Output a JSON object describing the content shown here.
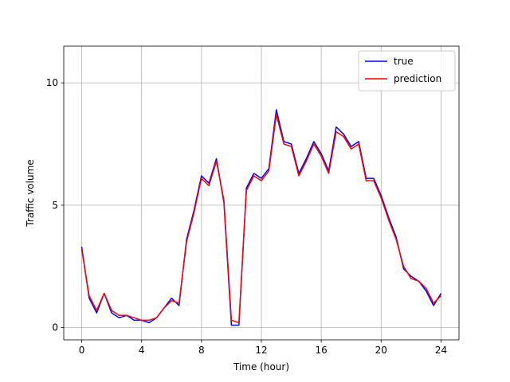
{
  "chart_data": {
    "type": "line",
    "title": "",
    "xlabel": "Time (hour)",
    "ylabel": "Traffic volume",
    "xlim": [
      -1.2,
      25.2
    ],
    "ylim": [
      -0.5,
      11.5
    ],
    "xticks": [
      0,
      4,
      8,
      12,
      16,
      20,
      24
    ],
    "xtick_labels": [
      "0",
      "4",
      "8",
      "12",
      "16",
      "20",
      "24"
    ],
    "yticks": [
      0,
      5,
      10
    ],
    "ytick_labels": [
      "0",
      "5",
      "10"
    ],
    "grid": true,
    "legend_position": "top-right",
    "series": [
      {
        "name": "true",
        "color": "#0000ff",
        "x": [
          0,
          0.5,
          1,
          1.5,
          2,
          2.5,
          3,
          3.5,
          4,
          4.5,
          5,
          5.5,
          6,
          6.5,
          7,
          7.5,
          8,
          8.5,
          9,
          9.5,
          10,
          10.5,
          11,
          11.5,
          12,
          12.5,
          13,
          13.5,
          14,
          14.5,
          15,
          15.5,
          16,
          16.5,
          17,
          17.5,
          18,
          18.5,
          19,
          19.5,
          20,
          20.5,
          21,
          21.5,
          22,
          22.5,
          23,
          23.5,
          24
        ],
        "y": [
          3.3,
          1.2,
          0.6,
          1.4,
          0.6,
          0.4,
          0.5,
          0.3,
          0.3,
          0.2,
          0.4,
          0.8,
          1.2,
          0.9,
          3.6,
          4.8,
          6.2,
          5.9,
          6.9,
          5.1,
          0.1,
          0.1,
          5.7,
          6.3,
          6.1,
          6.5,
          8.9,
          7.6,
          7.5,
          6.3,
          6.9,
          7.6,
          7.1,
          6.4,
          8.2,
          7.9,
          7.4,
          7.6,
          6.1,
          6.1,
          5.4,
          4.5,
          3.7,
          2.4,
          2.1,
          1.9,
          1.5,
          0.9,
          1.4
        ]
      },
      {
        "name": "prediction",
        "color": "#ff0000",
        "x": [
          0,
          0.5,
          1,
          1.5,
          2,
          2.5,
          3,
          3.5,
          4,
          4.5,
          5,
          5.5,
          6,
          6.5,
          7,
          7.5,
          8,
          8.5,
          9,
          9.5,
          10,
          10.5,
          11,
          11.5,
          12,
          12.5,
          13,
          13.5,
          14,
          14.5,
          15,
          15.5,
          16,
          16.5,
          17,
          17.5,
          18,
          18.5,
          19,
          19.5,
          20,
          20.5,
          21,
          21.5,
          22,
          22.5,
          23,
          23.5,
          24
        ],
        "y": [
          3.2,
          1.3,
          0.7,
          1.4,
          0.7,
          0.5,
          0.5,
          0.4,
          0.3,
          0.3,
          0.4,
          0.8,
          1.1,
          1.0,
          3.5,
          4.7,
          6.1,
          5.8,
          6.8,
          5.2,
          0.3,
          0.2,
          5.6,
          6.2,
          6.0,
          6.4,
          8.7,
          7.5,
          7.4,
          6.2,
          6.8,
          7.5,
          7.0,
          6.3,
          8.0,
          7.8,
          7.3,
          7.5,
          6.0,
          6.0,
          5.3,
          4.4,
          3.6,
          2.5,
          2.0,
          1.9,
          1.6,
          1.0,
          1.3
        ]
      }
    ]
  }
}
